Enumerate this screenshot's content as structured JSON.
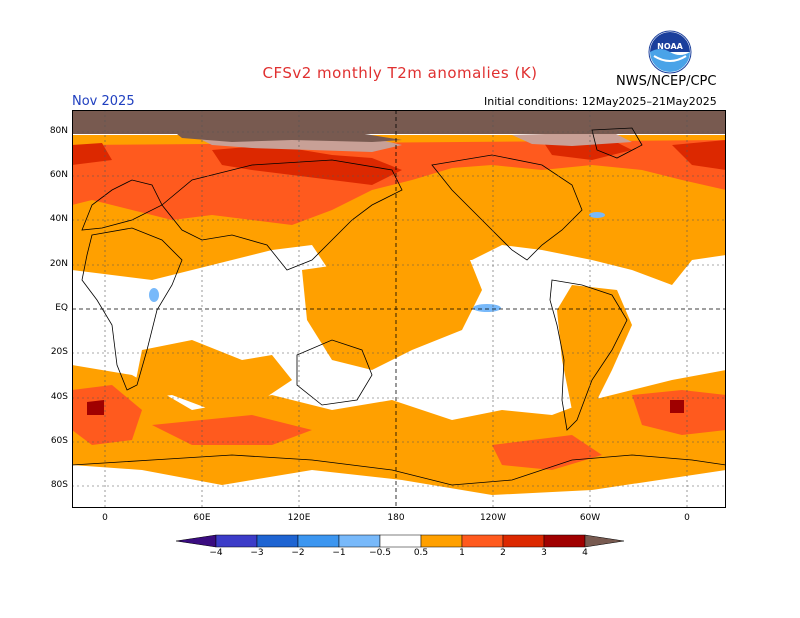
{
  "header": {
    "title": "CFSv2 monthly T2m anomalies (K)",
    "agency": "NWS/NCEP/CPC",
    "logo_text": "NOAA",
    "month": "Nov 2025",
    "initial_conditions": "Initial conditions: 12May2025–21May2025"
  },
  "map": {
    "lat_labels": [
      "80N",
      "60N",
      "40N",
      "20N",
      "EQ",
      "20S",
      "40S",
      "60S",
      "80S"
    ],
    "lon_labels": [
      "0",
      "60E",
      "120E",
      "180",
      "120W",
      "60W",
      "0"
    ]
  },
  "colorbar": {
    "labels": [
      "−4",
      "−3",
      "−2",
      "−1",
      "−0.5",
      "0.5",
      "1",
      "2",
      "3",
      "4"
    ],
    "colors": {
      "lt_m4": "#3a0c80",
      "m4_m3": "#3c3cc8",
      "m3_m2": "#1e64d2",
      "m2_m1": "#3c96f0",
      "m1_m05": "#78b9fa",
      "neutral": "#ffffff",
      "p05_p1": "#ffa000",
      "p1_p2": "#ff5a1e",
      "p2_p3": "#dc2800",
      "p3_p4": "#a00000",
      "p4_p5": "#c8a096",
      "gt_p5": "#785a50"
    }
  }
}
